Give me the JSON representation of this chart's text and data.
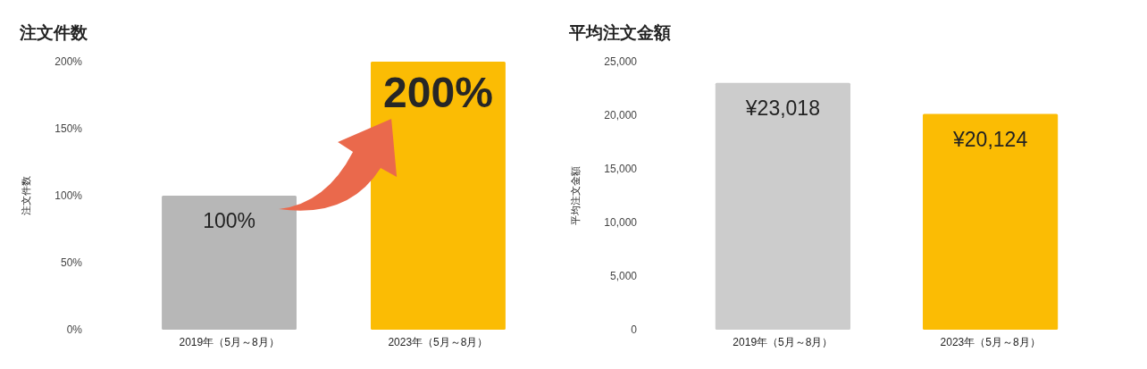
{
  "chart_data": [
    {
      "type": "bar",
      "title": "注文件数",
      "ylabel": "注文件数",
      "categories": [
        "2019年（5月～8月）",
        "2023年（5月～8月）"
      ],
      "values": [
        100,
        200
      ],
      "colors": [
        "#b7b7b7",
        "#fbbc04"
      ],
      "ylim": [
        0,
        200
      ],
      "yticks": [
        {
          "value": 0,
          "label": "0%"
        },
        {
          "value": 50,
          "label": "50%"
        },
        {
          "value": 100,
          "label": "100%"
        },
        {
          "value": 150,
          "label": "150%"
        },
        {
          "value": 200,
          "label": "200%"
        }
      ],
      "value_labels": [
        "100%",
        null
      ],
      "annotations": [
        {
          "text": "200%",
          "x": "2023年（5月～8月）",
          "y": 200
        }
      ]
    },
    {
      "type": "bar",
      "title": "平均注文金額",
      "ylabel": "平均注文金額",
      "categories": [
        "2019年（5月～8月）",
        "2023年（5月～8月）"
      ],
      "values": [
        23018,
        20124
      ],
      "colors": [
        "#cccccc",
        "#fbbc04"
      ],
      "ylim": [
        0,
        25000
      ],
      "yticks": [
        0,
        {
          "value": 5000,
          "label": "5,000"
        },
        {
          "value": 10000,
          "label": "10,000"
        },
        {
          "value": 15000,
          "label": "15,000"
        },
        {
          "value": 20000,
          "label": "20,000"
        },
        {
          "value": 25000,
          "label": "25,000"
        }
      ],
      "value_labels": [
        "¥23,018",
        "¥20,124"
      ]
    }
  ]
}
